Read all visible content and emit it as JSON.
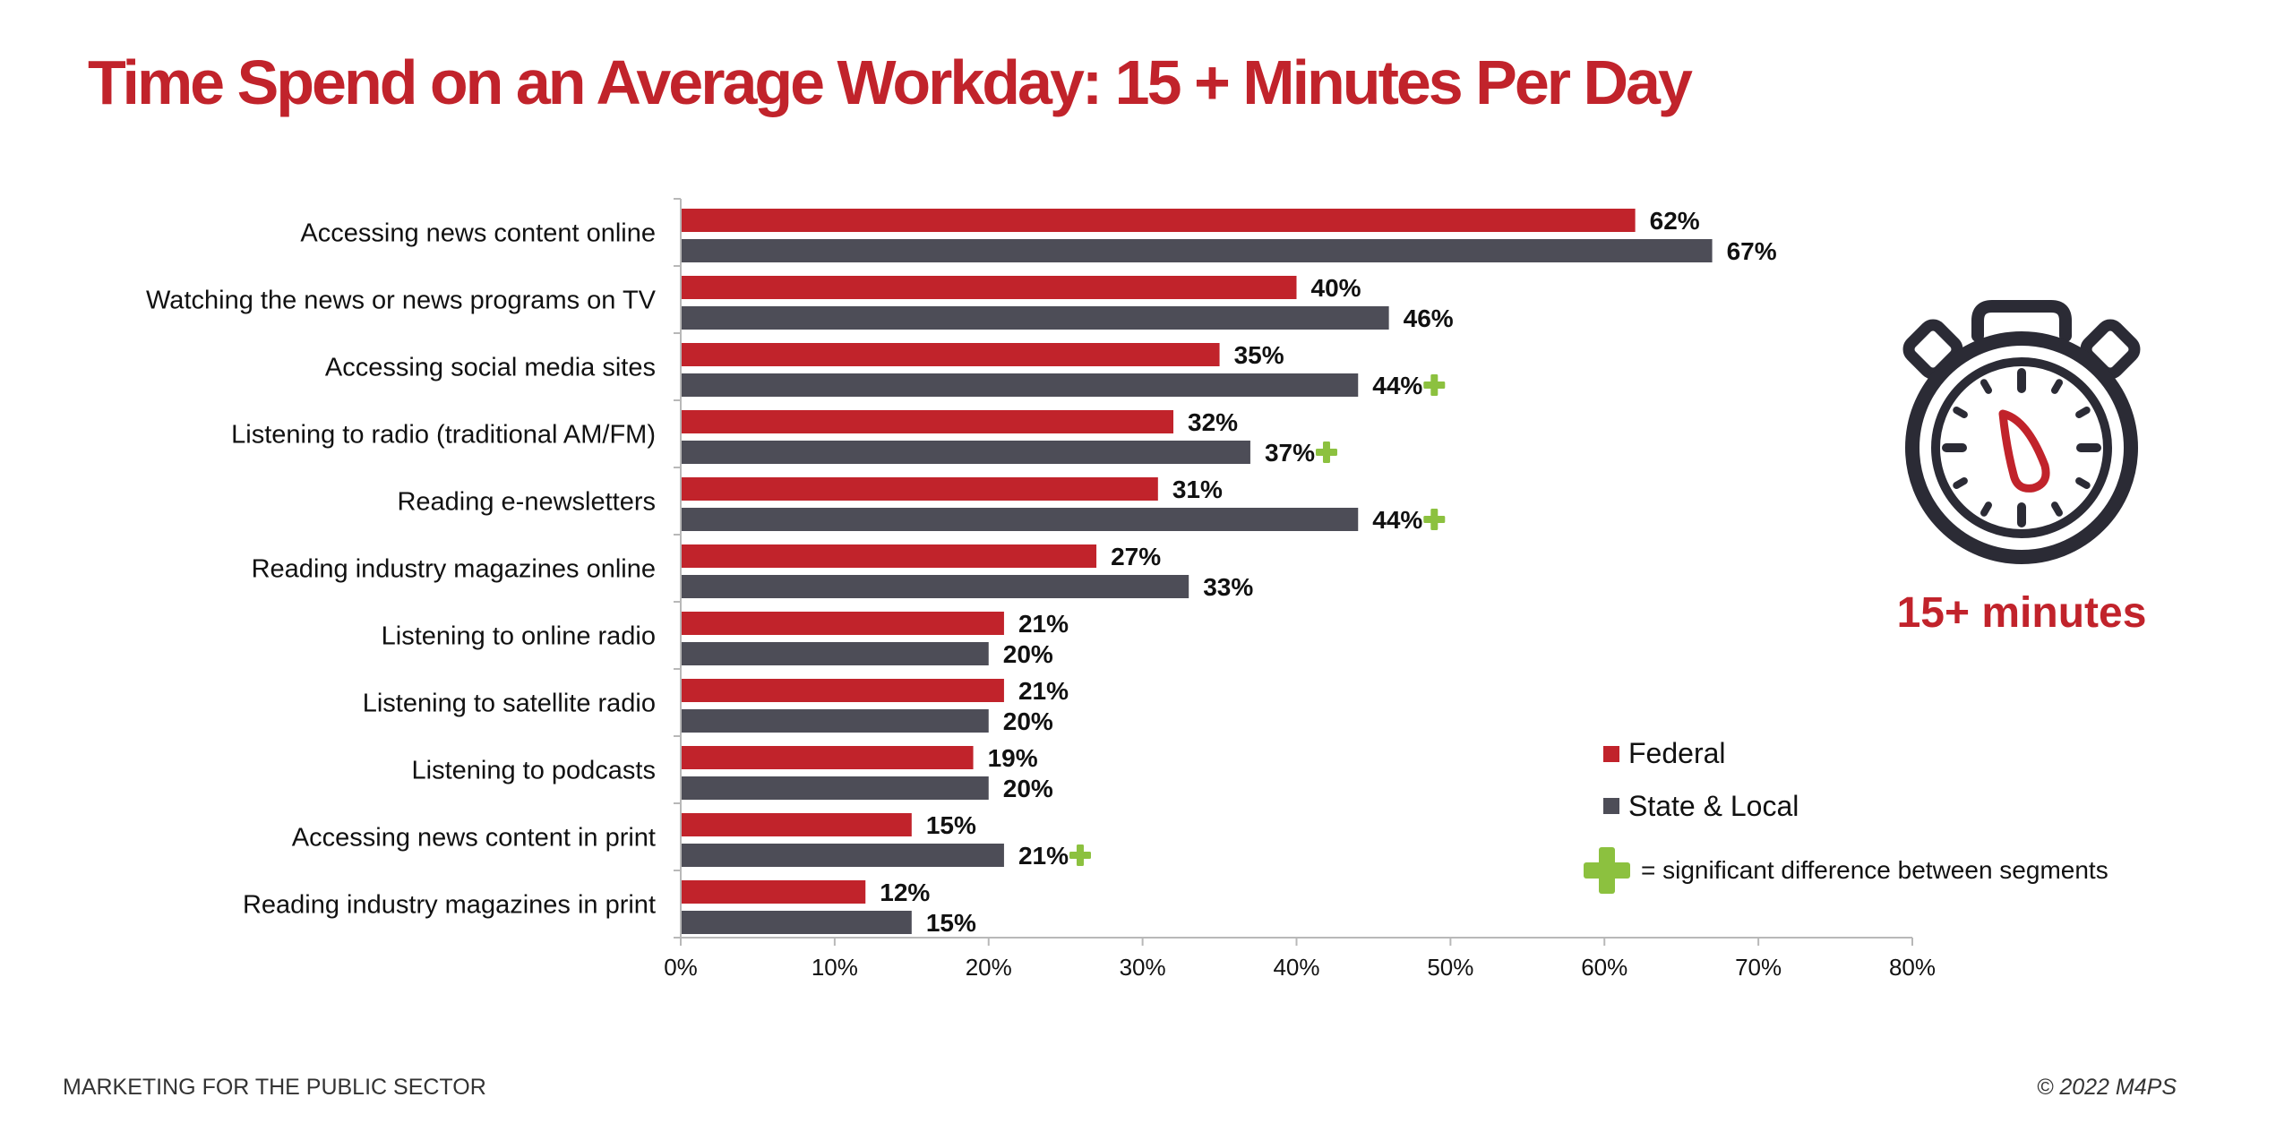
{
  "title": "Time Spend on an Average Workday: 15 + Minutes Per Day",
  "footer": {
    "left": "MARKETING FOR THE PUBLIC SECTOR",
    "right": "© 2022 M4PS"
  },
  "callout": {
    "icon": "stopwatch-icon",
    "label": "15+ minutes"
  },
  "colors": {
    "federal": "#c1232b",
    "state_local": "#4d4d57",
    "significance": "#8cc13f",
    "title": "#c1232b"
  },
  "chart_data": {
    "type": "bar",
    "orientation": "horizontal",
    "title": "",
    "xlabel": "",
    "ylabel": "",
    "xlim": [
      0,
      80
    ],
    "x_ticks": [
      "0%",
      "10%",
      "20%",
      "30%",
      "40%",
      "50%",
      "60%",
      "70%",
      "80%"
    ],
    "value_suffix": "%",
    "grid": false,
    "legend_position": "right",
    "categories": [
      "Accessing news content online",
      "Watching the news or news programs on TV",
      "Accessing social media sites",
      "Listening to radio (traditional AM/FM)",
      "Reading e-newsletters",
      "Reading industry magazines online",
      "Listening to online radio",
      "Listening to satellite radio",
      "Listening to podcasts",
      "Accessing news content in print",
      "Reading industry magazines in print"
    ],
    "series": [
      {
        "name": "Federal",
        "values": [
          62,
          40,
          35,
          32,
          31,
          27,
          21,
          21,
          19,
          15,
          12
        ],
        "significant": [
          false,
          false,
          false,
          false,
          false,
          false,
          false,
          false,
          false,
          false,
          false
        ]
      },
      {
        "name": "State & Local",
        "values": [
          67,
          46,
          44,
          37,
          44,
          33,
          20,
          20,
          20,
          21,
          15
        ],
        "significant": [
          false,
          false,
          true,
          true,
          true,
          false,
          false,
          false,
          false,
          true,
          false
        ]
      }
    ],
    "legend_note": "= significant difference between segments"
  }
}
